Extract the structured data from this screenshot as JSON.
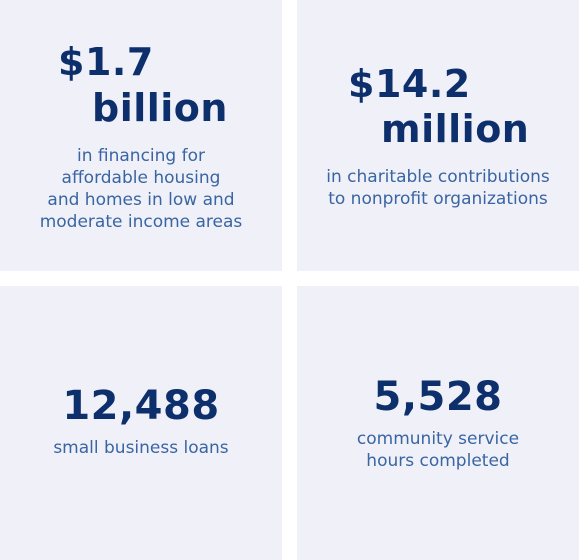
{
  "stats": [
    {
      "amount": "$1.7",
      "unit": "billion",
      "description": [
        "in financing for",
        "affordable housing",
        "and homes in low and",
        "moderate income areas"
      ]
    },
    {
      "amount": "$14.2",
      "unit": "million",
      "description": [
        "in charitable contributions",
        "to nonprofit organizations"
      ]
    },
    {
      "amount": "12,488",
      "description": [
        "small business loans"
      ]
    },
    {
      "amount": "5,528",
      "description": [
        "community service",
        "hours completed"
      ]
    }
  ],
  "colors": {
    "tile_background": "#eff0f8",
    "headline": "#0d2f6b",
    "description": "#3a65a3"
  }
}
